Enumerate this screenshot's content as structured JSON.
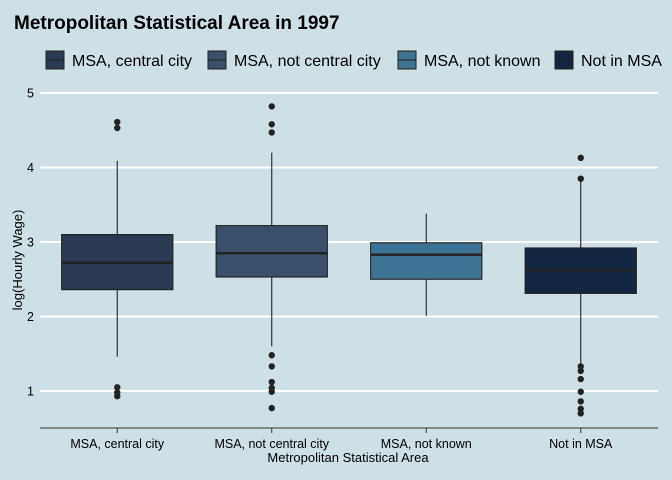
{
  "chart_data": {
    "type": "boxplot",
    "title": "Metropolitan Statistical Area in 1997",
    "xlabel": "Metropolitan Statistical Area",
    "ylabel": "log(Hourly Wage)",
    "ylim": [
      0.5,
      5.1
    ],
    "yticks": [
      1,
      2,
      3,
      4,
      5
    ],
    "grid": true,
    "legend_position": "top",
    "categories": [
      "MSA, central city",
      "MSA, not central city",
      "MSA, not known",
      "Not in MSA"
    ],
    "colors": [
      "#2b3a50",
      "#3b5068",
      "#3f7394",
      "#14263f"
    ],
    "boxes": [
      {
        "category": "MSA, central city",
        "whisker_low": 1.46,
        "q1": 2.36,
        "median": 2.72,
        "q3": 3.1,
        "whisker_high": 4.09,
        "outliers": [
          4.61,
          4.53,
          1.05,
          0.98,
          0.93
        ]
      },
      {
        "category": "MSA, not central city",
        "whisker_low": 1.6,
        "q1": 2.53,
        "median": 2.85,
        "q3": 3.22,
        "whisker_high": 4.2,
        "outliers": [
          4.82,
          4.58,
          4.47,
          1.48,
          1.33,
          1.12,
          1.04,
          0.99,
          0.77
        ]
      },
      {
        "category": "MSA, not known",
        "whisker_low": 2.01,
        "q1": 2.5,
        "median": 2.83,
        "q3": 2.99,
        "whisker_high": 3.38,
        "outliers": []
      },
      {
        "category": "Not in MSA",
        "whisker_low": 1.37,
        "q1": 2.31,
        "median": 2.62,
        "q3": 2.92,
        "whisker_high": 3.85,
        "outliers": [
          4.13,
          3.85,
          1.33,
          1.27,
          1.16,
          0.99,
          0.86,
          0.76,
          0.7
        ]
      }
    ]
  }
}
